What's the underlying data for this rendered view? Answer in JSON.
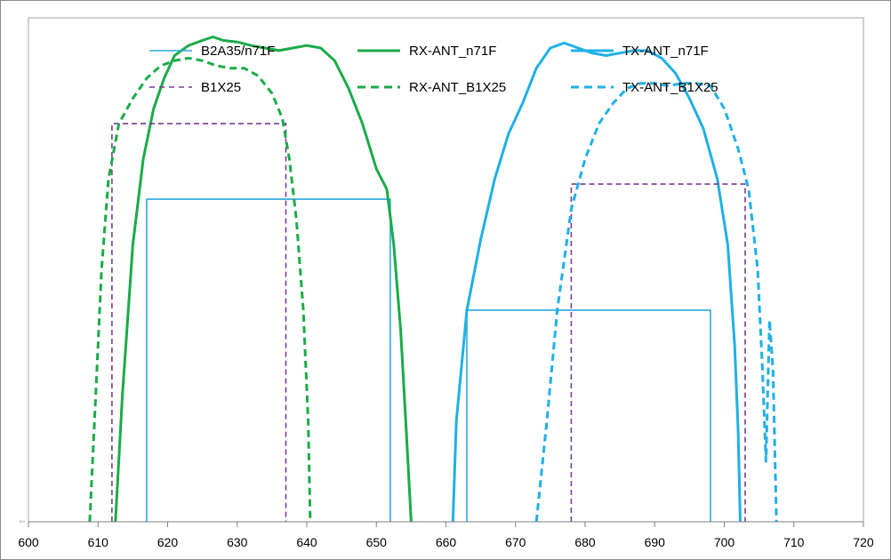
{
  "chart_data": {
    "type": "line",
    "title": "",
    "xlabel": "",
    "ylabel": "",
    "xlim": [
      600,
      720
    ],
    "xticks": [
      600,
      610,
      620,
      630,
      640,
      650,
      660,
      670,
      680,
      690,
      700,
      710,
      720
    ],
    "ylim": [
      0,
      1
    ],
    "y_axis_label_text": "0.0",
    "grid": false,
    "legend_position": "top",
    "legend": [
      {
        "name": "B2A35/n71F",
        "color": "#29a8e0",
        "style": "solid-thin"
      },
      {
        "name": "RX-ANT_n71F",
        "color": "#1aab48",
        "style": "solid-thick"
      },
      {
        "name": "TX-ANT_n71F",
        "color": "#1fb0e6",
        "style": "solid-thick"
      },
      {
        "name": "B1X25",
        "color": "#7b3a96",
        "style": "dashed-thin"
      },
      {
        "name": "RX-ANT_B1X25",
        "color": "#1aab48",
        "style": "dashed-thick"
      },
      {
        "name": "TX-ANT_B1X25",
        "color": "#1fb0e6",
        "style": "dashed-thick"
      }
    ],
    "series": [
      {
        "name": "B2A35/n71F",
        "color": "#29a8e0",
        "width": 1.6,
        "dash": "",
        "segments": [
          [
            [
              617,
              0
            ],
            [
              617,
              0.64
            ],
            [
              652,
              0.64
            ],
            [
              652,
              0
            ]
          ],
          [
            [
              663,
              0
            ],
            [
              663,
              0.42
            ],
            [
              698,
              0.42
            ],
            [
              698,
              0
            ]
          ]
        ]
      },
      {
        "name": "RX-ANT_n71F",
        "color": "#1aab48",
        "width": 3.0,
        "dash": "",
        "segments": [
          [
            [
              612.5,
              0
            ],
            [
              613.5,
              0.25
            ],
            [
              615,
              0.55
            ],
            [
              616.5,
              0.72
            ],
            [
              618,
              0.82
            ],
            [
              619.5,
              0.88
            ],
            [
              621,
              0.925
            ],
            [
              623,
              0.945
            ],
            [
              625,
              0.955
            ],
            [
              626.5,
              0.962
            ],
            [
              628,
              0.955
            ],
            [
              630,
              0.952
            ],
            [
              632,
              0.945
            ],
            [
              634,
              0.94
            ],
            [
              636,
              0.935
            ],
            [
              638,
              0.94
            ],
            [
              640,
              0.945
            ],
            [
              642,
              0.94
            ],
            [
              644,
              0.915
            ],
            [
              646,
              0.86
            ],
            [
              648,
              0.79
            ],
            [
              650,
              0.7
            ],
            [
              651.5,
              0.66
            ],
            [
              652.5,
              0.55
            ],
            [
              653.5,
              0.38
            ],
            [
              654.3,
              0.18
            ],
            [
              655,
              0
            ]
          ]
        ]
      },
      {
        "name": "TX-ANT_n71F",
        "color": "#1fb0e6",
        "width": 3.0,
        "dash": "",
        "segments": [
          [
            [
              661,
              0
            ],
            [
              661.5,
              0.2
            ],
            [
              663,
              0.42
            ],
            [
              665,
              0.56
            ],
            [
              667,
              0.68
            ],
            [
              669,
              0.77
            ],
            [
              671,
              0.83
            ],
            [
              673,
              0.9
            ],
            [
              675,
              0.94
            ],
            [
              677,
              0.95
            ],
            [
              679,
              0.94
            ],
            [
              681,
              0.93
            ],
            [
              683,
              0.925
            ],
            [
              685,
              0.93
            ],
            [
              687,
              0.935
            ],
            [
              689,
              0.935
            ],
            [
              691,
              0.92
            ],
            [
              693,
              0.89
            ],
            [
              695,
              0.84
            ],
            [
              697,
              0.78
            ],
            [
              699,
              0.68
            ],
            [
              700.5,
              0.55
            ],
            [
              701.5,
              0.35
            ],
            [
              702,
              0.18
            ],
            [
              702.3,
              0
            ]
          ]
        ]
      },
      {
        "name": "B1X25",
        "color": "#7b3a96",
        "width": 1.6,
        "dash": "6,4",
        "segments": [
          [
            [
              612,
              0
            ],
            [
              612,
              0.79
            ],
            [
              637,
              0.79
            ],
            [
              637,
              0
            ]
          ],
          [
            [
              678,
              0
            ],
            [
              678,
              0.67
            ],
            [
              703,
              0.67
            ],
            [
              703,
              0
            ]
          ]
        ]
      },
      {
        "name": "RX-ANT_B1X25",
        "color": "#1aab48",
        "width": 3.0,
        "dash": "8,5",
        "segments": [
          [
            [
              608.8,
              0
            ],
            [
              609.5,
              0.2
            ],
            [
              610.5,
              0.5
            ],
            [
              611.5,
              0.68
            ],
            [
              613,
              0.79
            ],
            [
              615,
              0.84
            ],
            [
              617,
              0.88
            ],
            [
              619,
              0.905
            ],
            [
              621,
              0.915
            ],
            [
              623,
              0.92
            ],
            [
              625,
              0.915
            ],
            [
              627,
              0.905
            ],
            [
              629,
              0.9
            ],
            [
              631,
              0.9
            ],
            [
              633,
              0.885
            ],
            [
              635,
              0.85
            ],
            [
              636.5,
              0.8
            ],
            [
              637.5,
              0.72
            ],
            [
              638.5,
              0.6
            ],
            [
              639.5,
              0.42
            ],
            [
              640.2,
              0.2
            ],
            [
              640.5,
              0
            ]
          ]
        ]
      },
      {
        "name": "TX-ANT_B1X25",
        "color": "#1fb0e6",
        "width": 3.0,
        "dash": "8,5",
        "segments": [
          [
            [
              673,
              0
            ],
            [
              674.5,
              0.2
            ],
            [
              676,
              0.42
            ],
            [
              678,
              0.62
            ],
            [
              680,
              0.72
            ],
            [
              682,
              0.79
            ],
            [
              684,
              0.83
            ],
            [
              686,
              0.86
            ],
            [
              688,
              0.87
            ],
            [
              690,
              0.87
            ],
            [
              692,
              0.865
            ],
            [
              694,
              0.87
            ],
            [
              696,
              0.87
            ],
            [
              698,
              0.865
            ],
            [
              700,
              0.82
            ],
            [
              702,
              0.74
            ],
            [
              703.5,
              0.66
            ],
            [
              704.8,
              0.5
            ],
            [
              705.5,
              0.3
            ],
            [
              706,
              0.12
            ],
            [
              706.5,
              0.4
            ],
            [
              707,
              0.3
            ],
            [
              707.5,
              0
            ]
          ]
        ]
      }
    ]
  }
}
